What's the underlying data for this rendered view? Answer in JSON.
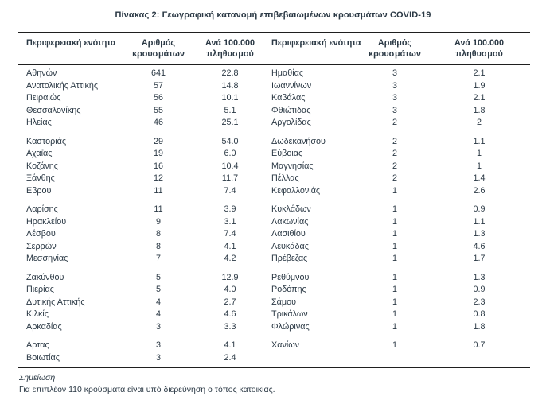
{
  "title": "Πίνακας 2: Γεωγραφική κατανομή επιβεβαιωμένων κρουσμάτων COVID-19",
  "table": {
    "columns": [
      "Περιφερειακή ενότητα",
      "Αριθμός κρουσμάτων",
      "Ανά 100.000 πληθυσμού"
    ],
    "left_groups": [
      [
        [
          "Αθηνών",
          "641",
          "22.8"
        ],
        [
          "Ανατολικής Αττικής",
          "57",
          "14.8"
        ],
        [
          "Πειραιώς",
          "56",
          "10.1"
        ],
        [
          "Θεσσαλονίκης",
          "55",
          "5.1"
        ],
        [
          "Ηλείας",
          "46",
          "25.1"
        ]
      ],
      [
        [
          "Καστοριάς",
          "29",
          "54.0"
        ],
        [
          "Αχαϊας",
          "19",
          "6.0"
        ],
        [
          "Κοζάνης",
          "16",
          "10.4"
        ],
        [
          "Ξάνθης",
          "12",
          "11.7"
        ],
        [
          "Εβρου",
          "11",
          "7.4"
        ]
      ],
      [
        [
          "Λαρίσης",
          "11",
          "3.9"
        ],
        [
          "Ηρακλείου",
          "9",
          "3.1"
        ],
        [
          "Λέσβου",
          "8",
          "7.4"
        ],
        [
          "Σερρών",
          "8",
          "4.1"
        ],
        [
          "Μεσσηνίας",
          "7",
          "4.2"
        ]
      ],
      [
        [
          "Ζακύνθου",
          "5",
          "12.9"
        ],
        [
          "Πιερίας",
          "5",
          "4.0"
        ],
        [
          "Δυτικής Αττικής",
          "4",
          "2.7"
        ],
        [
          "Κιλκίς",
          "4",
          "4.6"
        ],
        [
          "Αρκαδίας",
          "3",
          "3.3"
        ]
      ],
      [
        [
          "Αρτας",
          "3",
          "4.1"
        ],
        [
          "Βοιωτίας",
          "3",
          "2.4"
        ]
      ]
    ],
    "right_groups": [
      [
        [
          "Ημαθίας",
          "3",
          "2.1"
        ],
        [
          "Ιωαννίνων",
          "3",
          "1.9"
        ],
        [
          "Καβάλας",
          "3",
          "2.1"
        ],
        [
          "Φθιώτιδας",
          "3",
          "1.8"
        ],
        [
          "Αργολίδας",
          "2",
          "2"
        ]
      ],
      [
        [
          "Δωδεκανήσου",
          "2",
          "1.1"
        ],
        [
          "Εύβοιας",
          "2",
          "1"
        ],
        [
          "Μαγνησίας",
          "2",
          "1"
        ],
        [
          "Πέλλας",
          "2",
          "1.4"
        ],
        [
          "Κεφαλλονιάς",
          "1",
          "2.6"
        ]
      ],
      [
        [
          "Κυκλάδων",
          "1",
          "0.9"
        ],
        [
          "Λακωνίας",
          "1",
          "1.1"
        ],
        [
          "Λασιθίου",
          "1",
          "1.3"
        ],
        [
          "Λευκάδας",
          "1",
          "4.6"
        ],
        [
          "Πρέβεζας",
          "1",
          "1.7"
        ]
      ],
      [
        [
          "Ρεθύμνου",
          "1",
          "1.3"
        ],
        [
          "Ροδόπης",
          "1",
          "0.9"
        ],
        [
          "Σάμου",
          "1",
          "2.3"
        ],
        [
          "Τρικάλων",
          "1",
          "0.8"
        ],
        [
          "Φλώρινας",
          "1",
          "1.8"
        ]
      ],
      [
        [
          "Χανίων",
          "1",
          "0.7"
        ]
      ]
    ]
  },
  "note": {
    "label": "Σημείωση",
    "text": "Για επιπλέον 110 κρούσματα είναι υπό διερεύνηση ο τόπος κατοικίας."
  },
  "colors": {
    "text": "#2b3945",
    "rule": "#1f1f1f",
    "background": "#ffffff"
  }
}
